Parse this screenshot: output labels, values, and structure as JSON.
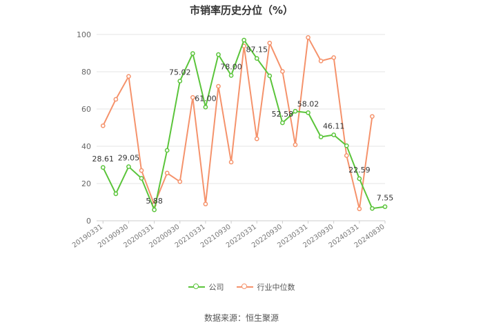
{
  "chart_data": {
    "type": "line",
    "title": "市销率历史分位（%）",
    "xlabel": "",
    "ylabel": "",
    "ylim": [
      0,
      100
    ],
    "yticks": [
      0,
      20,
      40,
      60,
      80,
      100
    ],
    "grid": true,
    "legend_position": "bottom",
    "categories": [
      "20190331",
      "20190630",
      "20190930",
      "20191231",
      "20200331",
      "20200630",
      "20200930",
      "20201231",
      "20210331",
      "20210630",
      "20210930",
      "20211231",
      "20220331",
      "20220630",
      "20220930",
      "20221231",
      "20230331",
      "20230630",
      "20230930",
      "20231231",
      "20240331",
      "20240630",
      "20240830"
    ],
    "x_tick_labels": [
      "20190331",
      "20190930",
      "20200331",
      "20200930",
      "20210331",
      "20210930",
      "20220331",
      "20220930",
      "20230331",
      "20230930",
      "20240331",
      "20240830"
    ],
    "series": [
      {
        "name": "公司",
        "color": "#5ac43a",
        "values": [
          28.61,
          14.5,
          29.05,
          22.8,
          5.88,
          37.8,
          75.02,
          89.8,
          61.0,
          89.2,
          78.0,
          97.0,
          87.15,
          77.8,
          52.58,
          58.8,
          58.02,
          45.0,
          46.11,
          40.3,
          22.59,
          6.6,
          7.55
        ]
      },
      {
        "name": "行业中位数",
        "color": "#f5926b",
        "values": [
          51.0,
          65.2,
          77.5,
          27.0,
          8.6,
          25.6,
          21.0,
          66.2,
          9.0,
          72.2,
          31.5,
          93.8,
          44.0,
          95.4,
          80.2,
          40.8,
          98.4,
          85.8,
          87.6,
          35.0,
          6.4,
          56.0,
          null
        ]
      }
    ],
    "data_labels": [
      {
        "index": 0,
        "text": "28.61"
      },
      {
        "index": 2,
        "text": "29.05"
      },
      {
        "index": 4,
        "text": "5.88"
      },
      {
        "index": 6,
        "text": "75.02"
      },
      {
        "index": 8,
        "text": "61.00"
      },
      {
        "index": 10,
        "text": "78.00"
      },
      {
        "index": 12,
        "text": "87.15"
      },
      {
        "index": 14,
        "text": "52.58"
      },
      {
        "index": 16,
        "text": "58.02"
      },
      {
        "index": 18,
        "text": "46.11"
      },
      {
        "index": 20,
        "text": "22.59"
      },
      {
        "index": 22,
        "text": "7.55"
      }
    ]
  },
  "legend": {
    "company_label": "公司",
    "industry_label": "行业中位数"
  },
  "source_text": "数据来源：恒生聚源"
}
